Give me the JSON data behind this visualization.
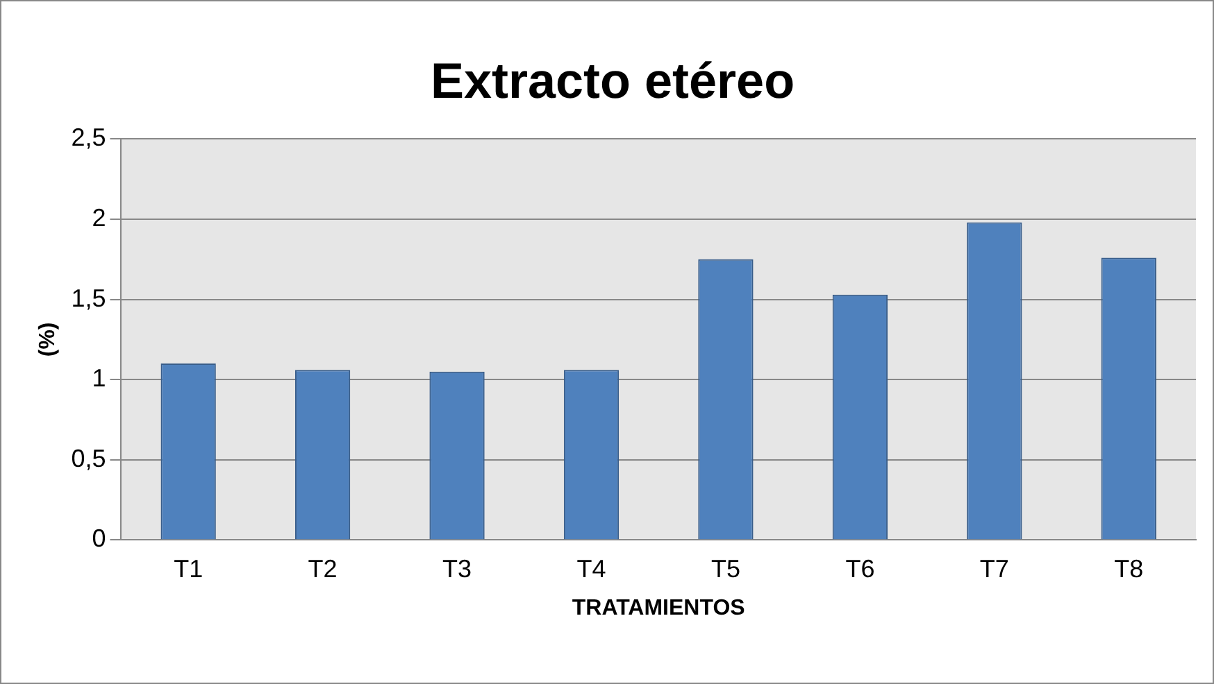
{
  "chart_data": {
    "type": "bar",
    "title": "Extracto etéreo",
    "xlabel": "TRATAMIENTOS",
    "ylabel": "(%)",
    "categories": [
      "T1",
      "T2",
      "T3",
      "T4",
      "T5",
      "T6",
      "T7",
      "T8"
    ],
    "values": [
      1.1,
      1.06,
      1.05,
      1.06,
      1.75,
      1.53,
      1.98,
      1.76
    ],
    "color": "#4f81bd",
    "ylim": [
      0,
      2.5
    ],
    "yticks": [
      {
        "value": 0,
        "label": "0"
      },
      {
        "value": 0.5,
        "label": "0,5"
      },
      {
        "value": 1,
        "label": "1"
      },
      {
        "value": 1.5,
        "label": "1,5"
      },
      {
        "value": 2,
        "label": "2"
      },
      {
        "value": 2.5,
        "label": "2,5"
      }
    ],
    "grid": "y",
    "legend": false
  }
}
